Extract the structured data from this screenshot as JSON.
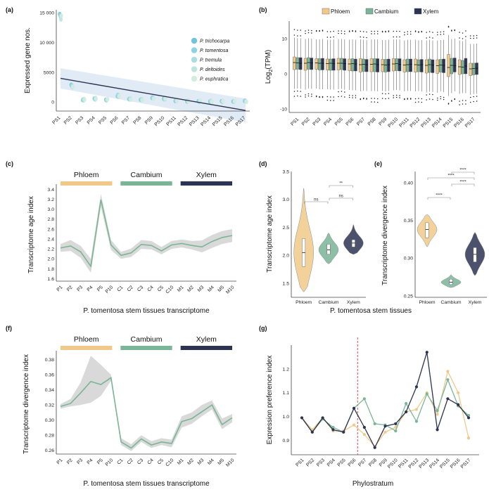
{
  "panel_labels": {
    "a": "(a)",
    "b": "(b)",
    "c": "(c)",
    "d": "(d)",
    "e": "(e)",
    "f": "(f)",
    "g": "(g)"
  },
  "colors": {
    "phloem": "#f0c98a",
    "cambium": "#79b596",
    "xylem": "#2d3353",
    "ribbon": "#c9c9c9",
    "trend": "#2d3353",
    "species": [
      "#6fc6dc",
      "#8fd3e3",
      "#a9dde0",
      "#bfe4de",
      "#d3ece0"
    ]
  },
  "chart_data": [
    {
      "id": "a",
      "type": "scatter",
      "xlabel": "",
      "ylabel": "Expressed gene nos.",
      "ylim": [
        -1500,
        15500
      ],
      "yticks": [
        0,
        5000,
        10000,
        15000
      ],
      "ytick_labels": [
        "0",
        "5000",
        "10 000",
        "15 000"
      ],
      "categories": [
        "PS1",
        "PS2",
        "PS3",
        "PS4",
        "PS5",
        "PS6",
        "PS7",
        "PS8",
        "PS9",
        "PS10",
        "PS11",
        "PS12",
        "PS13",
        "PS14",
        "PS15",
        "PS16",
        "PS17"
      ],
      "legend": [
        "P. trichocarpa",
        "P. tomentosa",
        "P. tremula",
        "P. deltoides",
        "P. euphratica"
      ],
      "points": [
        [
          14800,
          14600,
          14300,
          13900,
          14500
        ],
        [
          2900,
          2700,
          2800,
          2500,
          2600
        ],
        [
          350,
          450,
          300,
          500,
          400
        ],
        [
          600,
          500,
          450,
          700,
          550
        ],
        [
          400,
          300,
          350,
          450,
          500
        ],
        [
          1000,
          1200,
          900,
          1100,
          1000
        ],
        [
          500,
          550,
          450,
          600,
          400
        ],
        [
          400,
          450,
          350,
          500,
          300
        ],
        [
          700,
          800,
          650,
          600,
          550
        ],
        [
          550,
          500,
          600,
          450,
          650
        ],
        [
          200,
          300,
          250,
          350,
          150
        ],
        [
          150,
          100,
          200,
          250,
          100
        ],
        [
          150,
          100,
          50,
          200,
          250
        ],
        [
          100,
          150,
          200,
          50,
          100
        ],
        [
          150,
          100,
          50,
          200,
          150
        ],
        [
          100,
          150,
          50,
          100,
          200
        ],
        [
          200,
          250,
          150,
          100,
          50
        ]
      ],
      "trend": {
        "start": 3990,
        "end": -1400
      },
      "band_halfwidth": {
        "start": 1700,
        "end": 2000
      }
    },
    {
      "id": "b",
      "type": "box",
      "ylabel": "Log2(TPM)",
      "ylabel_main": "Log",
      "ylabel_sub": "2",
      "ylabel_tail": "(TPM)",
      "ylim": [
        -11,
        15
      ],
      "yticks": [
        -10,
        0,
        10
      ],
      "ytick_labels": [
        "-10",
        "0",
        "10"
      ],
      "categories": [
        "PS1",
        "PS2",
        "PS3",
        "PS4",
        "PS5",
        "PS6",
        "PS7",
        "PS8",
        "PS9",
        "PS10",
        "PS11",
        "PS12",
        "PS13",
        "PS14",
        "PS15",
        "PS16",
        "PS17"
      ],
      "legend": [
        "Phloem",
        "Cambium",
        "Xylem"
      ],
      "series": [
        {
          "name": "Phloem",
          "median": [
            3.2,
            3.0,
            3.1,
            2.9,
            3.0,
            2.8,
            2.6,
            2.7,
            2.6,
            2.8,
            2.5,
            2.6,
            2.4,
            2.3,
            1.8,
            2.0,
            1.4
          ],
          "q1": [
            1.2,
            1.0,
            1.3,
            1.1,
            1.1,
            0.9,
            0.5,
            0.6,
            0.6,
            0.8,
            0.5,
            0.5,
            0.2,
            0.1,
            -0.8,
            -0.2,
            -0.5
          ],
          "q3": [
            4.8,
            4.4,
            4.3,
            4.2,
            4.4,
            4.2,
            4.3,
            4.3,
            4.1,
            4.3,
            4.0,
            4.2,
            4.0,
            4.0,
            5.5,
            4.0,
            3.0
          ]
        },
        {
          "name": "Cambium",
          "median": [
            3.1,
            3.2,
            3.0,
            3.0,
            3.0,
            2.9,
            2.7,
            2.8,
            2.5,
            2.9,
            2.6,
            2.5,
            2.6,
            2.5,
            2.4,
            1.9,
            1.5
          ],
          "q1": [
            1.3,
            1.3,
            1.1,
            1.0,
            1.2,
            0.8,
            0.7,
            0.6,
            0.5,
            0.9,
            0.6,
            0.6,
            0.4,
            0.5,
            0.0,
            0.0,
            -0.3
          ],
          "q3": [
            4.6,
            4.6,
            4.3,
            4.2,
            4.4,
            4.3,
            4.2,
            4.3,
            4.1,
            4.3,
            4.2,
            4.0,
            4.2,
            4.1,
            4.4,
            3.8,
            3.0
          ]
        },
        {
          "name": "Xylem",
          "median": [
            3.0,
            3.1,
            3.0,
            2.9,
            2.9,
            2.8,
            2.6,
            2.6,
            2.6,
            2.7,
            2.7,
            2.6,
            2.5,
            2.4,
            2.3,
            2.2,
            1.6
          ],
          "q1": [
            1.2,
            1.2,
            1.1,
            1.0,
            1.0,
            0.8,
            0.6,
            0.5,
            0.6,
            0.8,
            0.6,
            0.5,
            0.3,
            0.3,
            0.5,
            0.0,
            -0.2
          ],
          "q3": [
            4.6,
            4.5,
            4.4,
            4.3,
            4.3,
            4.2,
            4.1,
            4.3,
            4.2,
            4.3,
            4.2,
            4.1,
            4.0,
            4.2,
            4.5,
            4.4,
            3.1
          ]
        }
      ]
    },
    {
      "id": "c",
      "type": "line",
      "xlabel": "P. tomentosa stem tissues transcriptome",
      "ylabel": "Transcriptome age index",
      "ylim": [
        1.55,
        3.45
      ],
      "yticks": [
        1.6,
        1.8,
        2.0,
        2.2,
        2.4,
        2.6,
        2.8,
        3.0,
        3.2,
        3.4
      ],
      "ytick_labels": [
        "1.6",
        "1.8",
        "2.0",
        "2.2",
        "2.4",
        "2.6",
        "2.8",
        "3.0",
        "3.2",
        "3.4"
      ],
      "bands": [
        "Phloem",
        "Cambium",
        "Xylem"
      ],
      "x": [
        "P1",
        "P2",
        "P3",
        "P4",
        "P5",
        "P10",
        "C1",
        "C2",
        "C3",
        "C4",
        "C5",
        "C10",
        "M1",
        "M2",
        "M3",
        "M4",
        "M5",
        "M10"
      ],
      "values": [
        2.22,
        2.26,
        2.14,
        1.85,
        3.19,
        2.28,
        2.07,
        2.12,
        2.29,
        2.27,
        2.16,
        2.28,
        2.31,
        2.27,
        2.24,
        2.35,
        2.43,
        2.47
      ],
      "ci_lower": [
        2.14,
        2.16,
        2.02,
        1.72,
        3.05,
        2.18,
        2.0,
        2.04,
        2.2,
        2.19,
        2.09,
        2.2,
        2.23,
        2.19,
        2.13,
        2.22,
        2.3,
        2.34
      ],
      "ci_upper": [
        2.3,
        2.38,
        2.26,
        2.0,
        3.31,
        2.38,
        2.14,
        2.21,
        2.38,
        2.36,
        2.24,
        2.36,
        2.39,
        2.36,
        2.37,
        2.48,
        2.56,
        2.6
      ]
    },
    {
      "id": "d",
      "type": "violin",
      "xlabel": "",
      "ylabel": "Transcriptome age index",
      "ylim": [
        1.25,
        3.5
      ],
      "yticks": [
        1.5,
        2.0,
        2.5,
        3.0,
        3.5
      ],
      "ytick_labels": [
        "1.5",
        "2.0",
        "2.5",
        "3.0",
        "3.5"
      ],
      "categories": [
        "Phloem",
        "Cambium",
        "Xylem"
      ],
      "min": [
        1.35,
        1.85,
        2.02
      ],
      "max": [
        3.2,
        2.4,
        2.55
      ],
      "median": [
        2.05,
        2.1,
        2.22
      ],
      "q1": [
        1.8,
        2.02,
        2.15
      ],
      "q3": [
        2.3,
        2.2,
        2.28
      ],
      "significance": [
        {
          "pair": [
            0,
            1
          ],
          "label": "ns"
        },
        {
          "pair": [
            1,
            2
          ],
          "label": "ns"
        },
        {
          "pair": [
            1,
            2
          ],
          "label": "**"
        }
      ]
    },
    {
      "id": "e",
      "type": "violin",
      "xlabel": "P. tomentosa stem tissues",
      "ylabel": "Transcriptome divergence index",
      "ylim": [
        0.248,
        0.415
      ],
      "yticks": [
        0.25,
        0.3,
        0.35,
        0.4
      ],
      "ytick_labels": [
        "0.25",
        "0.30",
        "0.35",
        "0.40"
      ],
      "categories": [
        "Phloem",
        "Cambium",
        "Xylem"
      ],
      "min": [
        0.315,
        0.261,
        0.277
      ],
      "max": [
        0.358,
        0.278,
        0.334
      ],
      "median": [
        0.338,
        0.268,
        0.305
      ],
      "q1": [
        0.327,
        0.265,
        0.295
      ],
      "q3": [
        0.347,
        0.272,
        0.314
      ],
      "significance": [
        {
          "pair": [
            0,
            1
          ],
          "label": "****"
        },
        {
          "pair": [
            1,
            2
          ],
          "label": "****"
        },
        {
          "pair": [
            0,
            2
          ],
          "label": "****"
        },
        {
          "pair": [
            1,
            2
          ],
          "label": "****"
        }
      ]
    },
    {
      "id": "f",
      "type": "line",
      "xlabel": "P. tomentosa stem tissues transcriptome",
      "ylabel": "Transcriptome divergence index",
      "ylim": [
        0.255,
        0.388
      ],
      "yticks": [
        0.26,
        0.28,
        0.3,
        0.32,
        0.34,
        0.36,
        0.38
      ],
      "ytick_labels": [
        "0.26",
        "0.28",
        "0.30",
        "0.32",
        "0.34",
        "0.36",
        "0.38"
      ],
      "bands": [
        "Phloem",
        "Cambium",
        "Xylem"
      ],
      "x": [
        "P1",
        "P2",
        "P3",
        "P4",
        "P5",
        "P10",
        "C1",
        "C2",
        "C3",
        "C4",
        "C5",
        "C10",
        "M1",
        "M2",
        "M3",
        "M4",
        "M5",
        "M10"
      ],
      "values": [
        0.318,
        0.322,
        0.336,
        0.351,
        0.347,
        0.356,
        0.271,
        0.263,
        0.275,
        0.267,
        0.271,
        0.269,
        0.298,
        0.302,
        0.311,
        0.32,
        0.294,
        0.303
      ],
      "ci_lower": [
        0.315,
        0.318,
        0.32,
        0.323,
        0.332,
        0.352,
        0.267,
        0.259,
        0.271,
        0.263,
        0.267,
        0.264,
        0.29,
        0.295,
        0.305,
        0.314,
        0.288,
        0.297
      ],
      "ci_upper": [
        0.321,
        0.328,
        0.35,
        0.385,
        0.373,
        0.36,
        0.276,
        0.268,
        0.28,
        0.272,
        0.276,
        0.274,
        0.305,
        0.31,
        0.32,
        0.326,
        0.302,
        0.308
      ]
    },
    {
      "id": "g",
      "type": "line",
      "xlabel": "Phylostratum",
      "ylabel": "Expression preference index",
      "ylim": [
        0.84,
        1.3
      ],
      "yticks": [
        0.9,
        1.0,
        1.1,
        1.2
      ],
      "ytick_labels": [
        "0.9",
        "1.0",
        "1.1",
        "1.2"
      ],
      "categories": [
        "PS1",
        "PS2",
        "PS3",
        "PS4",
        "PS5",
        "PS6",
        "PS7",
        "PS8",
        "PS9",
        "PS10",
        "PS11",
        "PS12",
        "PS13",
        "PS14",
        "PS15",
        "PS16",
        "PS17"
      ],
      "divider_after": "PS6",
      "series": [
        {
          "name": "Phloem",
          "values": [
            0.995,
            0.945,
            0.995,
            0.94,
            0.94,
            0.965,
            0.925,
            0.875,
            0.935,
            0.955,
            1.02,
            1.03,
            1.1,
            1.01,
            1.19,
            1.1,
            0.91
          ]
        },
        {
          "name": "Cambium",
          "values": [
            0.995,
            0.935,
            0.99,
            0.955,
            0.935,
            1.035,
            1.075,
            0.97,
            0.965,
            0.94,
            1.055,
            0.98,
            1.095,
            1.025,
            1.155,
            1.045,
            1.005
          ]
        },
        {
          "name": "Xylem",
          "values": [
            0.995,
            0.935,
            0.995,
            0.945,
            0.935,
            1.035,
            0.955,
            0.87,
            0.96,
            0.97,
            1.02,
            1.125,
            1.27,
            0.945,
            1.075,
            1.05,
            0.995
          ]
        }
      ]
    }
  ]
}
